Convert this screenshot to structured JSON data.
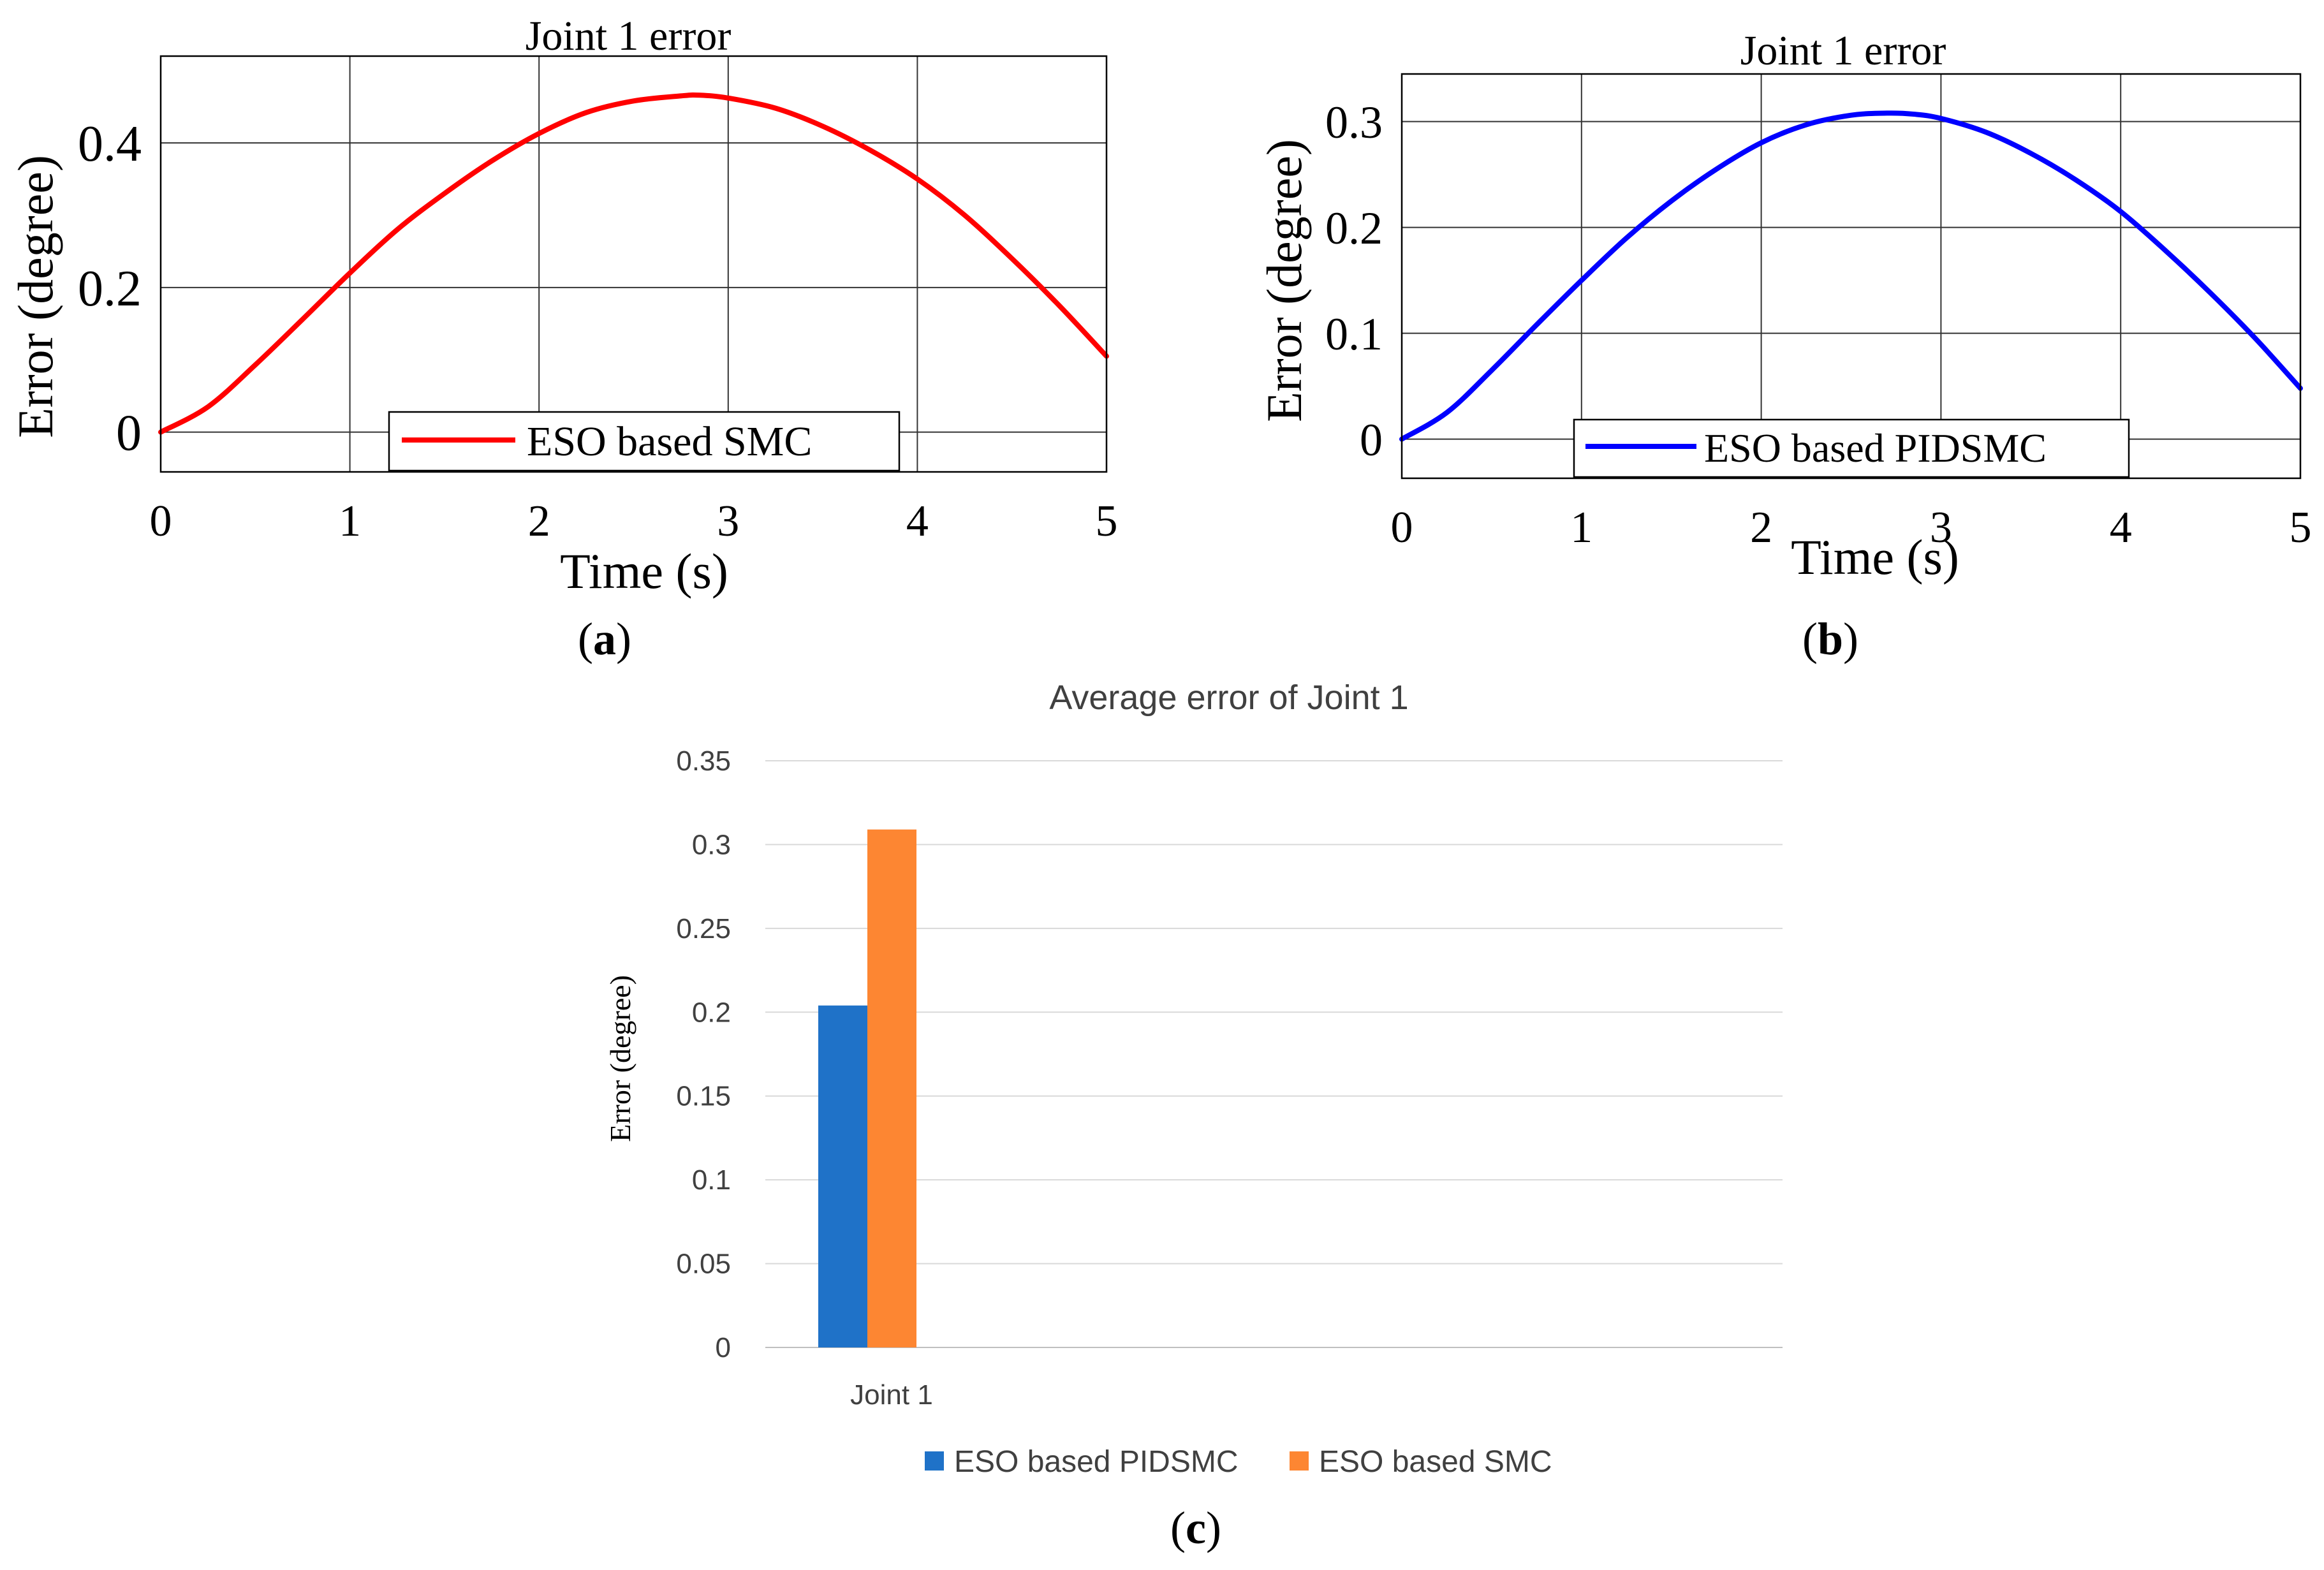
{
  "panels": {
    "a": {
      "label_open": "(",
      "label_letter": "a",
      "label_close": ")"
    },
    "b": {
      "label_open": "(",
      "label_letter": "b",
      "label_close": ")"
    },
    "c": {
      "label_open": "(",
      "label_letter": "c",
      "label_close": ")"
    }
  },
  "chart_data": [
    {
      "id": "a",
      "type": "line",
      "title": "Joint 1 error",
      "xlabel": "Time (s)",
      "ylabel": "Error (degree)",
      "xlim": [
        0,
        5
      ],
      "ylim": [
        -0.055,
        0.52
      ],
      "xticks": [
        0,
        1,
        2,
        3,
        4,
        5
      ],
      "yticks": [
        0,
        0.2,
        0.4
      ],
      "ytick_labels": [
        "0",
        "0.2",
        "0.4"
      ],
      "grid": true,
      "legend_position": "bottom-center",
      "series": [
        {
          "name": "ESO based SMC",
          "color": "#ff0000",
          "x": [
            0,
            0.25,
            0.5,
            0.75,
            1.0,
            1.25,
            1.5,
            1.75,
            2.0,
            2.25,
            2.5,
            2.75,
            2.85,
            3.0,
            3.25,
            3.5,
            3.75,
            4.0,
            4.25,
            4.5,
            4.75,
            5.0
          ],
          "y": [
            0.0,
            0.035,
            0.093,
            0.156,
            0.22,
            0.28,
            0.33,
            0.375,
            0.413,
            0.442,
            0.458,
            0.465,
            0.466,
            0.462,
            0.448,
            0.423,
            0.39,
            0.35,
            0.3,
            0.24,
            0.175,
            0.105
          ]
        }
      ]
    },
    {
      "id": "b",
      "type": "line",
      "title": "Joint 1 error",
      "xlabel": "Time (s)",
      "ylabel": "Error (degree)",
      "xlim": [
        0,
        5
      ],
      "ylim": [
        -0.037,
        0.345
      ],
      "xticks": [
        0,
        1,
        2,
        3,
        4,
        5
      ],
      "yticks": [
        0,
        0.1,
        0.2,
        0.3
      ],
      "ytick_labels": [
        "0",
        "0.1",
        "0.2",
        "0.3"
      ],
      "grid": true,
      "legend_position": "bottom-center",
      "series": [
        {
          "name": "ESO based PIDSMC",
          "color": "#0000ff",
          "x": [
            0,
            0.25,
            0.5,
            0.75,
            1.0,
            1.25,
            1.5,
            1.75,
            2.0,
            2.25,
            2.5,
            2.7,
            2.85,
            3.0,
            3.25,
            3.5,
            3.75,
            4.0,
            4.25,
            4.5,
            4.75,
            5.0
          ],
          "y": [
            0.0,
            0.025,
            0.065,
            0.108,
            0.15,
            0.19,
            0.225,
            0.255,
            0.28,
            0.297,
            0.306,
            0.308,
            0.307,
            0.303,
            0.29,
            0.27,
            0.245,
            0.215,
            0.178,
            0.138,
            0.095,
            0.048
          ]
        }
      ]
    },
    {
      "id": "c",
      "type": "bar",
      "title": "Average error of Joint 1",
      "xlabel": "",
      "ylabel": "Error (degree)",
      "categories": [
        "Joint 1"
      ],
      "ylim": [
        0,
        0.35
      ],
      "yticks": [
        0,
        0.05,
        0.1,
        0.15,
        0.2,
        0.25,
        0.3,
        0.35
      ],
      "ytick_labels": [
        "0",
        "0.05",
        "0.1",
        "0.15",
        "0.2",
        "0.25",
        "0.3",
        "0.35"
      ],
      "grid": true,
      "legend_position": "bottom",
      "series": [
        {
          "name": "ESO based PIDSMC",
          "color": "#1f72c8",
          "values": [
            0.204
          ]
        },
        {
          "name": "ESO based SMC",
          "color": "#fd8632",
          "values": [
            0.309
          ]
        }
      ]
    }
  ]
}
